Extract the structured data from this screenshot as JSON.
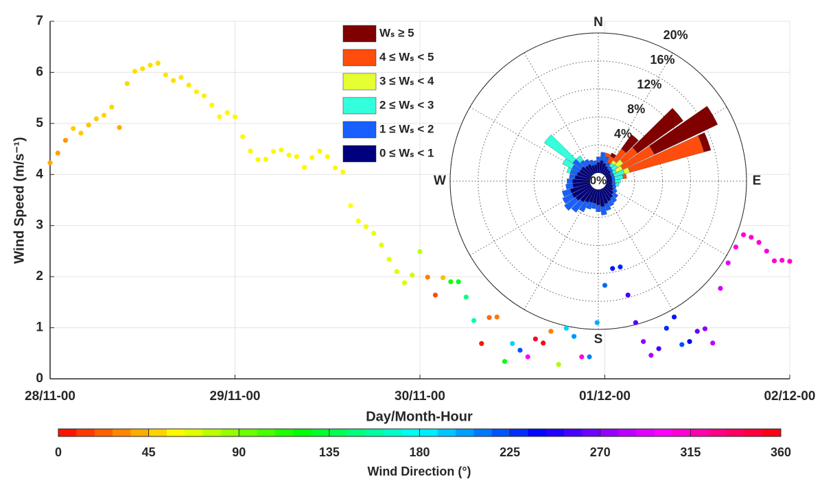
{
  "chart_data": [
    {
      "type": "scatter",
      "x_label": "Day/Month-Hour",
      "y_label": "Wind Speed (m/s⁻¹)",
      "x": [
        0,
        1,
        2,
        3,
        4,
        5,
        6,
        7,
        8,
        9,
        10,
        11,
        12,
        13,
        14,
        15,
        16,
        17,
        18,
        19,
        20,
        21,
        22,
        23,
        24,
        25,
        26,
        27,
        28,
        29,
        30,
        31,
        32,
        33,
        34,
        35,
        36,
        37,
        38,
        39,
        40,
        41,
        42,
        43,
        44,
        45,
        46,
        47,
        48,
        49,
        50,
        51,
        52,
        53,
        54,
        55,
        56,
        57,
        58,
        59,
        60,
        61,
        62,
        63,
        64,
        65,
        66,
        67,
        68,
        69,
        70,
        71,
        72,
        73,
        74,
        75,
        76,
        77,
        78,
        79,
        80,
        81,
        82,
        83,
        84,
        85,
        86,
        87,
        88,
        89,
        90,
        91,
        92,
        93,
        94,
        95,
        96
      ],
      "values": [
        4.23,
        4.42,
        4.67,
        4.9,
        4.81,
        4.97,
        5.09,
        5.16,
        5.32,
        4.92,
        5.78,
        6.02,
        6.07,
        6.14,
        6.18,
        5.95,
        5.84,
        5.9,
        5.75,
        5.62,
        5.54,
        5.36,
        5.13,
        5.21,
        5.13,
        4.74,
        4.46,
        4.29,
        4.3,
        4.45,
        4.48,
        4.38,
        4.35,
        4.14,
        4.33,
        4.46,
        4.35,
        4.13,
        4.05,
        3.39,
        3.09,
        2.98,
        2.85,
        2.62,
        2.34,
        2.1,
        1.88,
        2.03,
        2.49,
        1.99,
        1.64,
        1.98,
        1.9,
        1.9,
        1.6,
        1.14,
        0.69,
        1.2,
        1.21,
        0.34,
        0.69,
        0.56,
        0.43,
        0.78,
        0.7,
        0.93,
        0.28,
        0.99,
        0.83,
        0.43,
        0.43,
        1.1,
        1.83,
        2.16,
        2.19,
        1.64,
        1.1,
        0.73,
        0.46,
        0.59,
        0.99,
        1.21,
        0.67,
        0.73,
        0.93,
        0.98,
        0.7,
        1.77,
        2.27,
        2.58,
        2.82,
        2.77,
        2.67,
        2.5,
        2.31,
        2.32,
        2.3
      ],
      "directions": [
        40,
        38,
        35,
        48,
        48,
        46,
        48,
        50,
        50,
        40,
        50,
        52,
        52,
        52,
        52,
        54,
        52,
        54,
        54,
        56,
        56,
        58,
        58,
        58,
        58,
        58,
        58,
        58,
        58,
        58,
        58,
        58,
        58,
        58,
        58,
        58,
        58,
        58,
        58,
        60,
        62,
        64,
        64,
        66,
        66,
        68,
        70,
        72,
        75,
        30,
        18,
        45,
        115,
        125,
        150,
        160,
        5,
        25,
        28,
        125,
        190,
        220,
        300,
        350,
        355,
        30,
        80,
        190,
        205,
        310,
        210,
        200,
        215,
        235,
        232,
        255,
        260,
        275,
        280,
        255,
        230,
        235,
        222,
        240,
        265,
        272,
        285,
        290,
        295,
        305,
        312,
        312,
        310,
        308,
        310,
        310,
        312
      ],
      "colormap": "hsv",
      "xlim": [
        0,
        96
      ],
      "xticks": [
        {
          "value": 0,
          "label": "28/11-00"
        },
        {
          "value": 24,
          "label": "29/11-00"
        },
        {
          "value": 48,
          "label": "30/11-00"
        },
        {
          "value": 72,
          "label": "01/12-00"
        },
        {
          "value": 96,
          "label": "02/12-00"
        }
      ],
      "ylim": [
        0,
        7
      ],
      "yticks": [
        0,
        1,
        2,
        3,
        4,
        5,
        6,
        7
      ],
      "grid": true,
      "colorbar": {
        "label": "Wind Direction (°)",
        "lim": [
          0,
          360
        ],
        "ticks": [
          0,
          45,
          90,
          135,
          180,
          225,
          270,
          315,
          360
        ]
      }
    },
    {
      "type": "windrose",
      "directions": [
        0,
        10,
        20,
        30,
        40,
        50,
        60,
        70,
        80,
        90,
        100,
        110,
        120,
        130,
        140,
        150,
        160,
        170,
        180,
        190,
        200,
        210,
        220,
        230,
        240,
        250,
        260,
        270,
        280,
        290,
        300,
        310,
        320,
        330,
        340,
        350
      ],
      "rlim": [
        0,
        20
      ],
      "rticks": [
        {
          "value": 0,
          "label": "0%"
        },
        {
          "value": 4,
          "label": "4%"
        },
        {
          "value": 8,
          "label": "8%"
        },
        {
          "value": 12,
          "label": "12%"
        },
        {
          "value": 16,
          "label": "16%"
        },
        {
          "value": 20,
          "label": "20%"
        }
      ],
      "compass": [
        "N",
        "E",
        "S",
        "W"
      ],
      "grid": true,
      "series": [
        {
          "name": "0 ≤ Wₛ < 1",
          "color": "#00007f",
          "values": [
            1.5,
            1.8,
            1.5,
            1.2,
            1.0,
            1.0,
            0.8,
            0.8,
            0.8,
            0.8,
            0.8,
            1.0,
            1.2,
            1.5,
            1.8,
            2.0,
            2.2,
            2.5,
            2.2,
            2.0,
            2.0,
            2.2,
            2.5,
            2.8,
            3.0,
            3.0,
            2.5,
            2.5,
            2.2,
            2.0,
            1.8,
            1.8,
            1.5,
            1.5,
            1.2,
            1.2
          ]
        },
        {
          "name": "1 ≤ Wₛ < 2",
          "color": "#1760ff",
          "values": [
            0.8,
            1.2,
            1.0,
            0.6,
            0.5,
            0.4,
            0.4,
            0.4,
            0.4,
            0.4,
            0.5,
            0.5,
            0.6,
            0.8,
            0.8,
            0.8,
            1.0,
            1.2,
            1.0,
            0.8,
            1.0,
            1.5,
            1.8,
            2.0,
            1.5,
            1.2,
            1.0,
            0.8,
            0.8,
            1.0,
            1.2,
            1.5,
            1.0,
            0.8,
            0.8,
            0.6
          ]
        },
        {
          "name": "2 ≤ Wₛ < 3",
          "color": "#33ffdd",
          "values": [
            0,
            0,
            0,
            0,
            0.5,
            0.8,
            0.5,
            1.5,
            1.2,
            0.8,
            0.5,
            0,
            0,
            0,
            0,
            0,
            0,
            0,
            0,
            0,
            0,
            0,
            0,
            0,
            0,
            0,
            0,
            0,
            0,
            0.5,
            1.5,
            5.0,
            0.8,
            0,
            0,
            0
          ]
        },
        {
          "name": "3 ≤ Wₛ < 4",
          "color": "#e5ff33",
          "values": [
            0,
            0,
            0,
            0,
            0.5,
            1.0,
            1.0,
            0.8,
            0,
            0,
            0,
            0,
            0,
            0,
            0,
            0,
            0,
            0,
            0,
            0,
            0,
            0,
            0,
            0,
            0,
            0,
            0,
            0,
            0,
            0,
            0,
            0,
            0,
            0,
            0,
            0
          ]
        },
        {
          "name": "4 ≤ Wₛ < 5",
          "color": "#ff4d0d",
          "values": [
            0,
            0,
            0.5,
            1.0,
            2.0,
            2.5,
            5.0,
            11.0,
            0.5,
            0,
            0,
            0,
            0,
            0,
            0,
            0,
            0,
            0,
            0,
            0,
            0,
            0,
            0,
            0,
            0,
            0,
            0,
            0,
            0,
            0,
            0,
            0,
            0,
            0,
            0,
            0
          ]
        },
        {
          "name": "Wₛ ≥ 5",
          "color": "#800000",
          "values": [
            0,
            0,
            0,
            0.5,
            2.5,
            8.0,
            10.0,
            1.0,
            0,
            0,
            0,
            0,
            0,
            0,
            0,
            0,
            0,
            0,
            0,
            0,
            0,
            0,
            0,
            0,
            0,
            0,
            0,
            0,
            0,
            0,
            0,
            0,
            0,
            0,
            0,
            0
          ]
        }
      ]
    }
  ]
}
